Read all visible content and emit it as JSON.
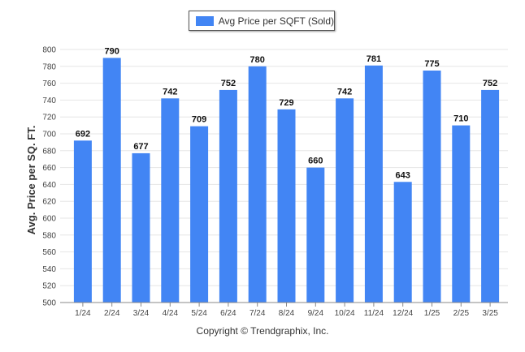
{
  "chart_data": {
    "type": "bar",
    "categories": [
      "1/24",
      "2/24",
      "3/24",
      "4/24",
      "5/24",
      "6/24",
      "7/24",
      "8/24",
      "9/24",
      "10/24",
      "11/24",
      "12/24",
      "1/25",
      "2/25",
      "3/25"
    ],
    "series": [
      {
        "name": "Avg Price per SQFT (Sold)",
        "values": [
          692,
          790,
          677,
          742,
          709,
          752,
          780,
          729,
          660,
          742,
          781,
          643,
          775,
          710,
          752
        ]
      }
    ],
    "ylabel": "Avg. Price per SQ. FT.",
    "xlabel": "",
    "ylim": [
      500,
      800
    ],
    "yticks": [
      500,
      520,
      540,
      560,
      580,
      600,
      620,
      640,
      660,
      680,
      700,
      720,
      740,
      760,
      780,
      800
    ],
    "grid": true,
    "legend_position": "top-center",
    "bar_color": "#4285f4"
  },
  "footer": {
    "copyright": "Copyright © Trendgraphix, Inc."
  }
}
